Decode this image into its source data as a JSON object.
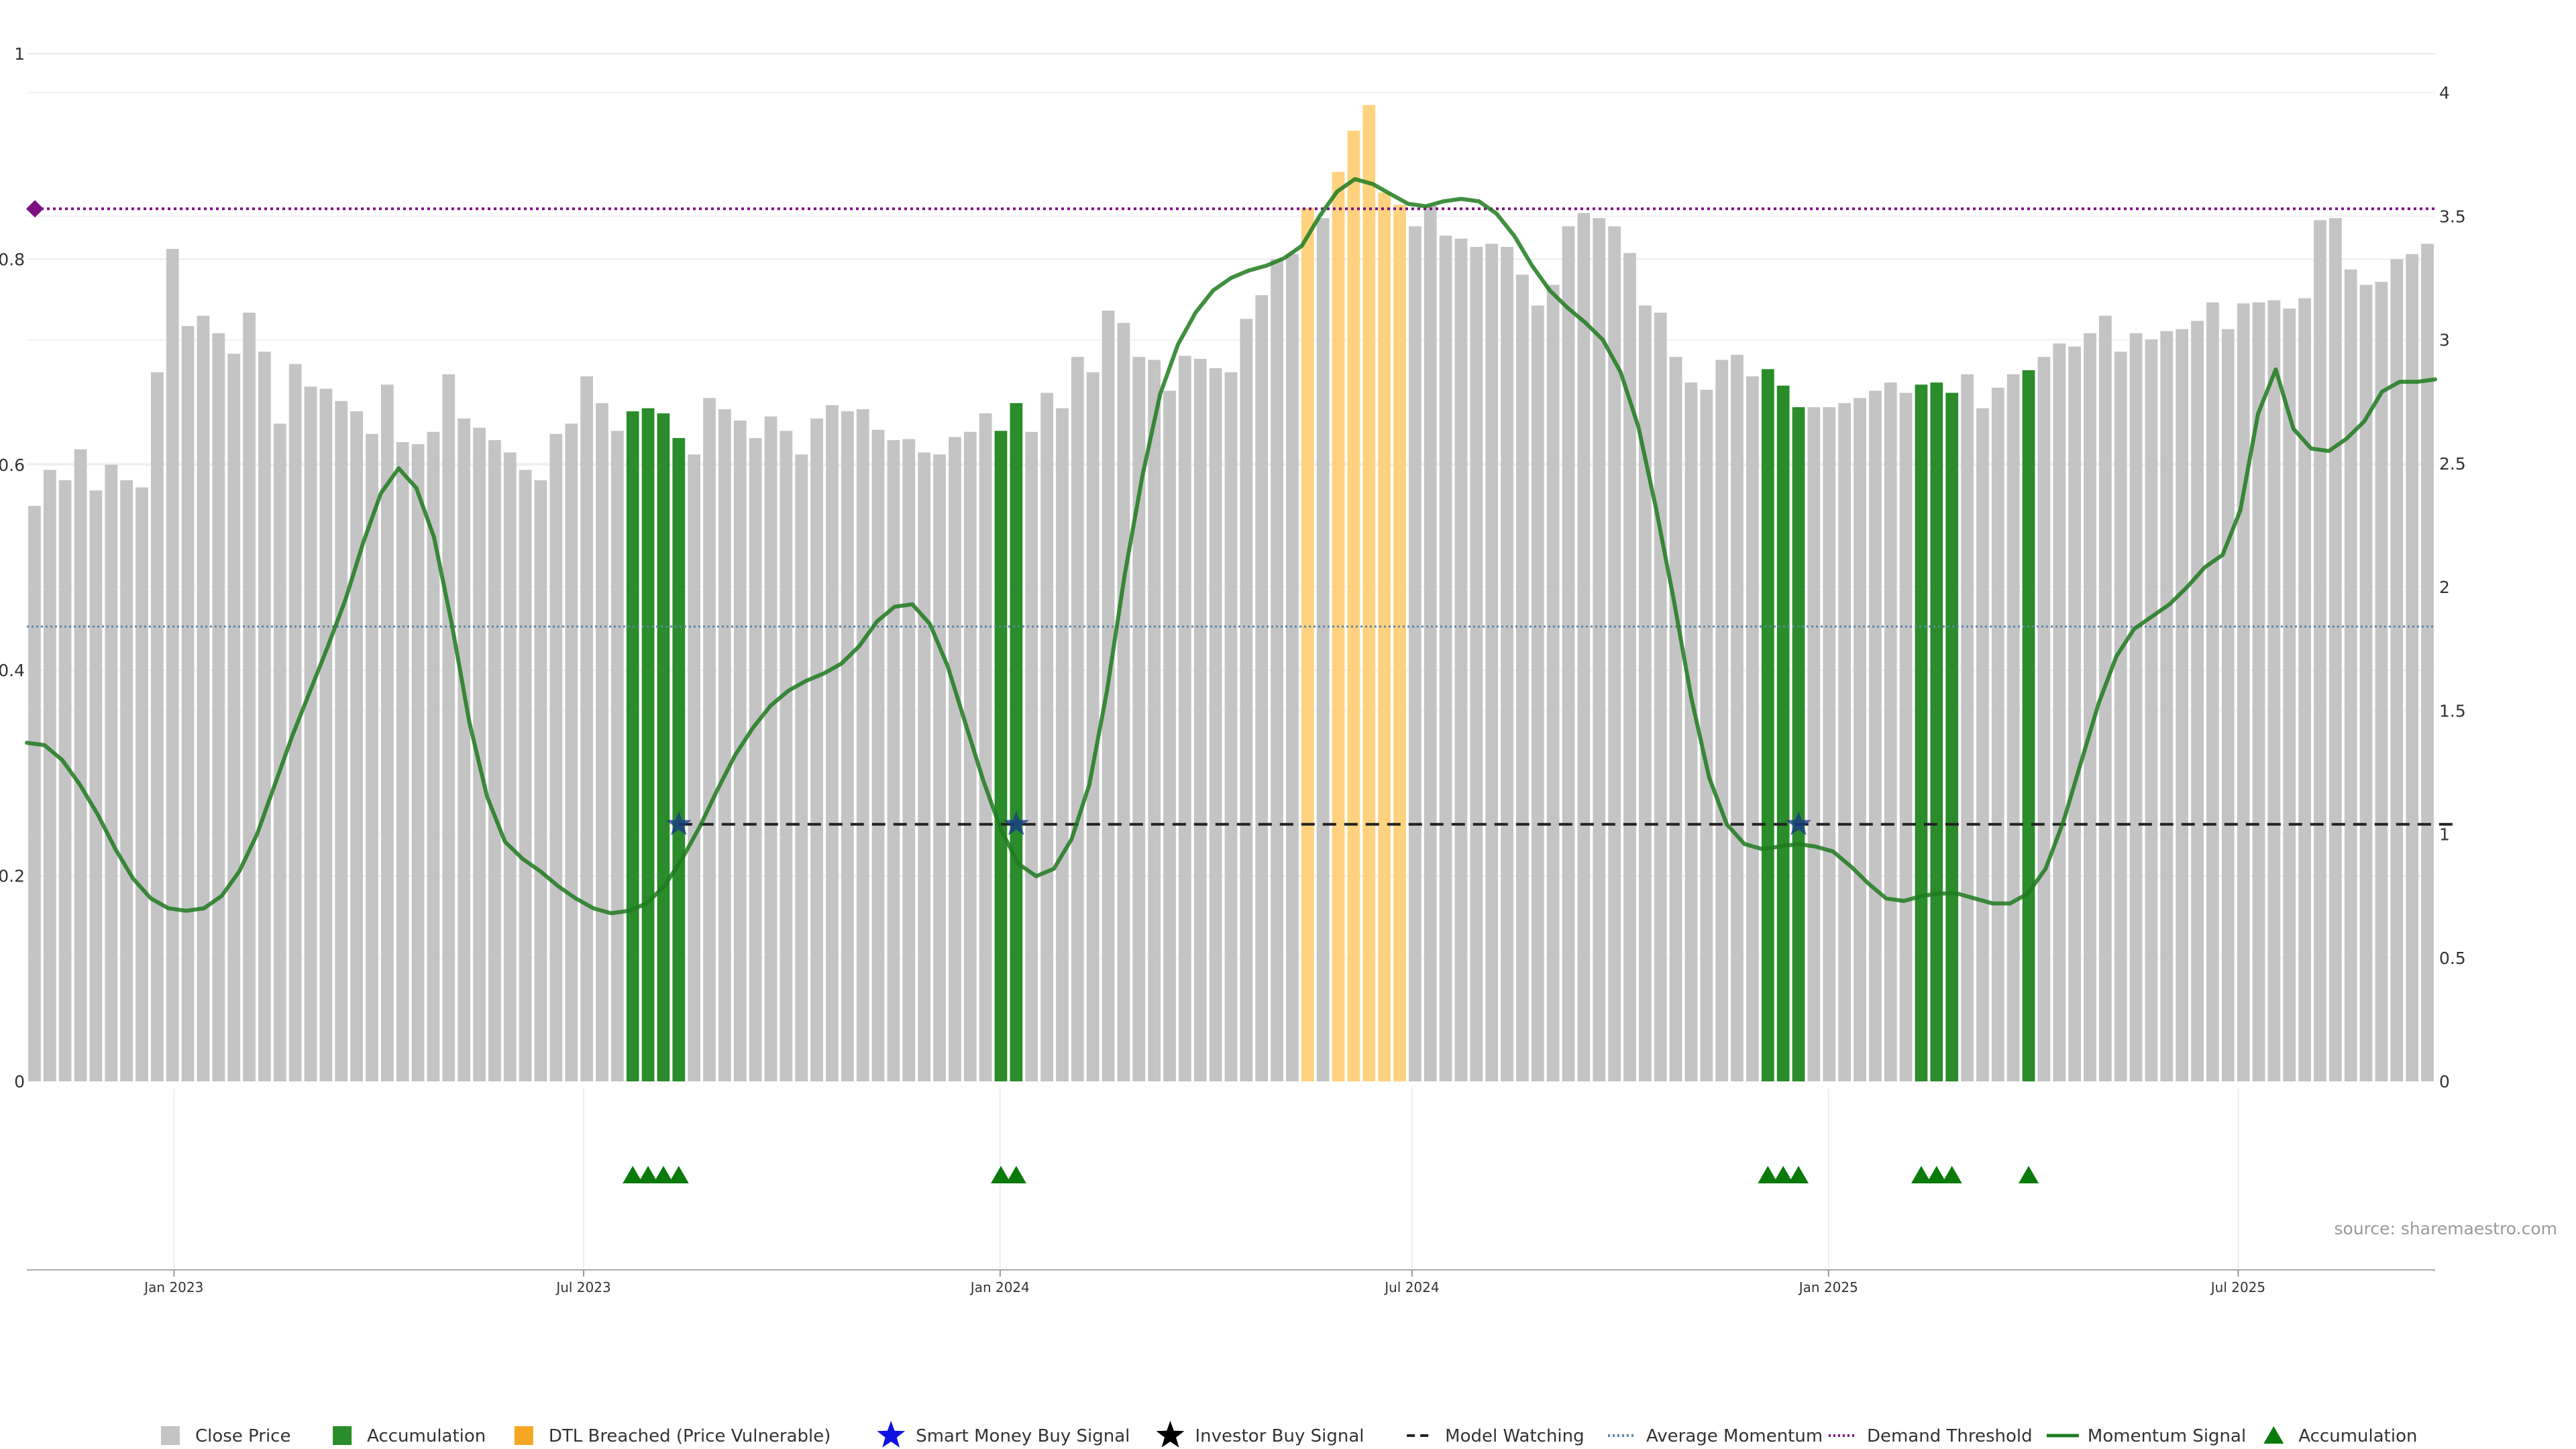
{
  "source": "source: sharemaestro.com",
  "chart_data": {
    "type": "bar",
    "left_axis": {
      "ticks": [
        "0",
        "0.2",
        "0.4",
        "0.6",
        "0.8",
        "1"
      ],
      "ylim": [
        0,
        1
      ]
    },
    "right_axis": {
      "ticks": [
        "0",
        "0.5",
        "1",
        "1.5",
        "2",
        "2.5",
        "3",
        "3.5",
        "4"
      ],
      "ylim": [
        0,
        4
      ]
    },
    "x_ticks": [
      {
        "label": "Jan 2023",
        "date": "2023-01-01"
      },
      {
        "label": "Jul 2023",
        "date": "2023-07-01"
      },
      {
        "label": "Jan 2024",
        "date": "2024-01-01"
      },
      {
        "label": "Jul 2024",
        "date": "2024-07-01"
      },
      {
        "label": "Jan 2025",
        "date": "2025-01-01"
      },
      {
        "label": "Jul 2025",
        "date": "2025-07-01"
      }
    ],
    "date_range": [
      "2022-10-28",
      "2025-09-26"
    ],
    "bar_interval_days": 7,
    "close_price": [
      0.56,
      0.595,
      0.585,
      0.615,
      0.575,
      0.6,
      0.585,
      0.578,
      0.69,
      0.81,
      0.735,
      0.745,
      0.728,
      0.708,
      0.748,
      0.71,
      0.64,
      0.698,
      0.676,
      0.674,
      0.662,
      0.652,
      0.63,
      0.678,
      0.622,
      0.62,
      0.632,
      0.688,
      0.645,
      0.636,
      0.624,
      0.612,
      0.595,
      0.585,
      0.63,
      0.64,
      0.686,
      0.66,
      0.633,
      0.652,
      0.655,
      0.65,
      0.626,
      0.61,
      0.665,
      0.654,
      0.643,
      0.626,
      0.647,
      0.633,
      0.61,
      0.645,
      0.658,
      0.652,
      0.654,
      0.634,
      0.624,
      0.625,
      0.612,
      0.61,
      0.627,
      0.632,
      0.65,
      0.633,
      0.66,
      0.632,
      0.67,
      0.655,
      0.705,
      0.69,
      0.75,
      0.738,
      0.705,
      0.702,
      0.672,
      0.706,
      0.703,
      0.694,
      0.69,
      0.742,
      0.765,
      0.8,
      0.805,
      0.85,
      0.84,
      0.885,
      0.925,
      0.95,
      0.865,
      0.853,
      0.832,
      0.852,
      0.823,
      0.82,
      0.812,
      0.815,
      0.812,
      0.785,
      0.755,
      0.775,
      0.832,
      0.845,
      0.84,
      0.832,
      0.806,
      0.755,
      0.748,
      0.705,
      0.68,
      0.673,
      0.702,
      0.707,
      0.686,
      0.693,
      0.677,
      0.656,
      0.656,
      0.656,
      0.66,
      0.665,
      0.672,
      0.68,
      0.67,
      0.678,
      0.68,
      0.67,
      0.688,
      0.655,
      0.675,
      0.688,
      0.692,
      0.705,
      0.718,
      0.715,
      0.728,
      0.745,
      0.71,
      0.728,
      0.722,
      0.73,
      0.732,
      0.74,
      0.758,
      0.732,
      0.757,
      0.758,
      0.76,
      0.752,
      0.762,
      0.838,
      0.84,
      0.79,
      0.775,
      0.778,
      0.8,
      0.805,
      0.815
    ],
    "accumulation_bars": [
      39,
      40,
      41,
      42,
      63,
      64,
      113,
      114,
      115,
      123,
      124,
      125,
      130
    ],
    "dtl_breached_bars": [
      83,
      85,
      86,
      87,
      88,
      89
    ],
    "momentum_signal": [
      [
        0,
        1.37
      ],
      [
        2,
        1.36
      ],
      [
        4,
        1.3
      ],
      [
        6,
        1.2
      ],
      [
        8,
        1.08
      ],
      [
        10,
        0.94
      ],
      [
        12,
        0.82
      ],
      [
        14,
        0.74
      ],
      [
        16,
        0.7
      ],
      [
        18,
        0.69
      ],
      [
        20,
        0.7
      ],
      [
        22,
        0.75
      ],
      [
        24,
        0.85
      ],
      [
        26,
        1.0
      ],
      [
        28,
        1.2
      ],
      [
        30,
        1.4
      ],
      [
        32,
        1.58
      ],
      [
        34,
        1.76
      ],
      [
        36,
        1.95
      ],
      [
        38,
        2.18
      ],
      [
        40,
        2.38
      ],
      [
        42,
        2.48
      ],
      [
        44,
        2.4
      ],
      [
        46,
        2.2
      ],
      [
        48,
        1.85
      ],
      [
        50,
        1.45
      ],
      [
        52,
        1.15
      ],
      [
        54,
        0.97
      ],
      [
        56,
        0.9
      ],
      [
        58,
        0.85
      ],
      [
        60,
        0.79
      ],
      [
        62,
        0.74
      ],
      [
        64,
        0.7
      ],
      [
        66,
        0.68
      ],
      [
        68,
        0.69
      ],
      [
        70,
        0.72
      ],
      [
        72,
        0.79
      ],
      [
        74,
        0.9
      ],
      [
        76,
        1.03
      ],
      [
        78,
        1.18
      ],
      [
        80,
        1.32
      ],
      [
        82,
        1.43
      ],
      [
        84,
        1.52
      ],
      [
        86,
        1.58
      ],
      [
        88,
        1.62
      ],
      [
        90,
        1.65
      ],
      [
        92,
        1.69
      ],
      [
        94,
        1.76
      ],
      [
        96,
        1.86
      ],
      [
        98,
        1.92
      ],
      [
        100,
        1.93
      ],
      [
        102,
        1.85
      ],
      [
        104,
        1.68
      ],
      [
        106,
        1.45
      ],
      [
        108,
        1.22
      ],
      [
        110,
        1.02
      ],
      [
        112,
        0.88
      ],
      [
        114,
        0.83
      ],
      [
        116,
        0.86
      ],
      [
        118,
        0.98
      ],
      [
        120,
        1.2
      ],
      [
        122,
        1.58
      ],
      [
        124,
        2.05
      ],
      [
        126,
        2.45
      ],
      [
        128,
        2.78
      ],
      [
        130,
        2.98
      ],
      [
        132,
        3.11
      ],
      [
        134,
        3.2
      ],
      [
        136,
        3.25
      ],
      [
        138,
        3.28
      ],
      [
        140,
        3.3
      ],
      [
        142,
        3.33
      ],
      [
        144,
        3.38
      ],
      [
        146,
        3.5
      ],
      [
        148,
        3.6
      ],
      [
        150,
        3.65
      ],
      [
        152,
        3.63
      ],
      [
        154,
        3.59
      ],
      [
        156,
        3.55
      ],
      [
        158,
        3.54
      ],
      [
        160,
        3.56
      ],
      [
        162,
        3.57
      ],
      [
        164,
        3.56
      ],
      [
        166,
        3.51
      ],
      [
        168,
        3.42
      ],
      [
        170,
        3.3
      ],
      [
        172,
        3.2
      ],
      [
        174,
        3.13
      ],
      [
        176,
        3.07
      ],
      [
        178,
        3.0
      ],
      [
        180,
        2.87
      ],
      [
        182,
        2.65
      ],
      [
        184,
        2.32
      ],
      [
        186,
        1.95
      ],
      [
        188,
        1.55
      ],
      [
        190,
        1.23
      ],
      [
        192,
        1.04
      ],
      [
        194,
        0.96
      ],
      [
        196,
        0.94
      ],
      [
        198,
        0.95
      ],
      [
        200,
        0.96
      ],
      [
        202,
        0.95
      ],
      [
        204,
        0.93
      ],
      [
        206,
        0.87
      ],
      [
        208,
        0.8
      ],
      [
        210,
        0.74
      ],
      [
        212,
        0.73
      ],
      [
        214,
        0.75
      ],
      [
        216,
        0.76
      ],
      [
        218,
        0.76
      ],
      [
        220,
        0.74
      ],
      [
        222,
        0.72
      ],
      [
        224,
        0.72
      ],
      [
        226,
        0.76
      ],
      [
        228,
        0.86
      ],
      [
        230,
        1.05
      ],
      [
        232,
        1.29
      ],
      [
        234,
        1.53
      ],
      [
        236,
        1.72
      ],
      [
        238,
        1.83
      ],
      [
        240,
        1.88
      ],
      [
        242,
        1.93
      ],
      [
        244,
        2.0
      ],
      [
        246,
        2.08
      ],
      [
        248,
        2.13
      ],
      [
        250,
        2.31
      ],
      [
        252,
        2.7
      ],
      [
        254,
        2.88
      ],
      [
        256,
        2.64
      ],
      [
        258,
        2.56
      ],
      [
        260,
        2.55
      ],
      [
        262,
        2.6
      ],
      [
        264,
        2.67
      ],
      [
        266,
        2.79
      ],
      [
        268,
        2.83
      ],
      [
        270,
        2.83
      ],
      [
        272,
        2.84
      ]
    ],
    "smart_money_buy_signals": [
      42,
      64,
      115
    ],
    "average_momentum": 1.84,
    "demand_threshold": 3.53,
    "model_watching": {
      "value": 1.04,
      "segments": [
        [
          42,
          158
        ]
      ]
    },
    "accumulation_markers": [
      39,
      40,
      41,
      42,
      63,
      64,
      113,
      114,
      115,
      123,
      124,
      125,
      130
    ],
    "legend": [
      {
        "label": "Close Price",
        "shape": "square",
        "color": "#c4c4c4"
      },
      {
        "label": "Accumulation",
        "shape": "square",
        "color": "#2a8c2a"
      },
      {
        "label": "DTL Breached (Price Vulnerable)",
        "shape": "square",
        "color": "#f5a623"
      },
      {
        "label": "Smart Money Buy Signal",
        "shape": "star",
        "color": "#1010e0"
      },
      {
        "label": "Investor Buy Signal",
        "shape": "star",
        "color": "#000000"
      },
      {
        "label": "Model Watching",
        "shape": "dash",
        "color": "#222222"
      },
      {
        "label": "Average Momentum",
        "shape": "dots",
        "color": "#5b86a8"
      },
      {
        "label": "Demand Threshold",
        "shape": "dots",
        "color": "#7d1080"
      },
      {
        "label": "Momentum Signal",
        "shape": "line",
        "color": "#1e7b1e"
      },
      {
        "label": "Accumulation",
        "shape": "triangle",
        "color": "#0a7a0a"
      }
    ],
    "legend_position": "bottom-center",
    "colors": {
      "close_price": "#c4c4c4",
      "accumulation": "#2a8c2a",
      "dtl_breached": "#ffd27f",
      "momentum": "#1e7b1e",
      "average_momentum": "#5b86a8",
      "demand_threshold": "#7d1080",
      "model_watching": "#222222",
      "smart_money": "#1a3a8a",
      "accumulation_marker": "#0a7a0a"
    },
    "grid": true
  }
}
